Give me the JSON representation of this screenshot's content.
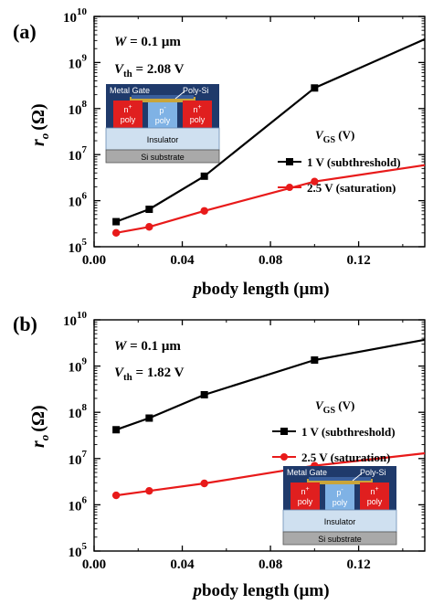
{
  "chart_data": [
    {
      "type": "line",
      "panel_label": "(a)",
      "ylabel_main": "r",
      "ylabel_sub": "o",
      "ylabel_unit": "(Ω)",
      "xlabel_italic": "p",
      "xlabel_rest": "body length (μm)",
      "x_ticks": [
        "0.00",
        "0.04",
        "0.08",
        "0.12"
      ],
      "y_ticks": [
        {
          "base": "10",
          "exp": "5"
        },
        {
          "base": "10",
          "exp": "6"
        },
        {
          "base": "10",
          "exp": "7"
        },
        {
          "base": "10",
          "exp": "8"
        },
        {
          "base": "10",
          "exp": "9"
        },
        {
          "base": "10",
          "exp": "10"
        }
      ],
      "xlim": [
        0,
        0.15
      ],
      "ylim_log10": [
        5,
        10
      ],
      "y_scale": "log",
      "annotations": {
        "w_italic": "W",
        "w_rest": " = 0.1 μm",
        "vth_italic": "V",
        "vth_sub": "th",
        "vth_rest": " = 2.08 V"
      },
      "legend_title": {
        "italic": "V",
        "sub": "GS",
        "rest": " (V)"
      },
      "legend_placement": "right",
      "inset_placement": "left",
      "series": [
        {
          "name": "1 V (subthreshold)",
          "color": "#000000",
          "marker": "square",
          "x": [
            0.01,
            0.025,
            0.05,
            0.1,
            0.15
          ],
          "y": [
            350000.0,
            650000.0,
            3400000.0,
            280000000.0,
            3200000000.0
          ]
        },
        {
          "name": "2.5 V (saturation)",
          "color": "#e81a1a",
          "marker": "circle",
          "x": [
            0.01,
            0.025,
            0.05,
            0.1,
            0.15
          ],
          "y": [
            200000.0,
            270000.0,
            600000.0,
            2600000.0,
            5900000.0
          ]
        }
      ]
    },
    {
      "type": "line",
      "panel_label": "(b)",
      "ylabel_main": "r",
      "ylabel_sub": "o",
      "ylabel_unit": "(Ω)",
      "xlabel_italic": "p",
      "xlabel_rest": "body length (μm)",
      "x_ticks": [
        "0.00",
        "0.04",
        "0.08",
        "0.12"
      ],
      "y_ticks": [
        {
          "base": "10",
          "exp": "5"
        },
        {
          "base": "10",
          "exp": "6"
        },
        {
          "base": "10",
          "exp": "7"
        },
        {
          "base": "10",
          "exp": "8"
        },
        {
          "base": "10",
          "exp": "9"
        },
        {
          "base": "10",
          "exp": "10"
        }
      ],
      "xlim": [
        0,
        0.15
      ],
      "ylim_log10": [
        5,
        10
      ],
      "y_scale": "log",
      "annotations": {
        "w_italic": "W",
        "w_rest": " = 0.1 μm",
        "vth_italic": "V",
        "vth_sub": "th",
        "vth_rest": " = 1.82 V"
      },
      "legend_title": {
        "italic": "V",
        "sub": "GS",
        "rest": " (V)"
      },
      "legend_placement": "right",
      "inset_placement": "bottom-right",
      "series": [
        {
          "name": "1 V (subthreshold)",
          "color": "#000000",
          "marker": "square",
          "x": [
            0.01,
            0.025,
            0.05,
            0.1,
            0.15
          ],
          "y": [
            42000000.0,
            75000000.0,
            240000000.0,
            1350000000.0,
            3700000000.0
          ]
        },
        {
          "name": "2.5 V (saturation)",
          "color": "#e81a1a",
          "marker": "circle",
          "x": [
            0.01,
            0.025,
            0.05,
            0.1,
            0.15
          ],
          "y": [
            1600000.0,
            2000000.0,
            2900000.0,
            7000000.0,
            13000000.0
          ]
        }
      ]
    }
  ],
  "inset": {
    "metal_gate": "Metal Gate",
    "poly_si": "Poly-Si",
    "n_plus": "n",
    "n_plus_sup": "+",
    "p_minus": "p",
    "p_minus_sup": "-",
    "poly": "poly",
    "insulator": "Insulator",
    "si_substrate": "Si substrate",
    "colors": {
      "gate": "#1f3a6b",
      "n_region": "#e01f1f",
      "p_region": "#7fb2e5",
      "gold": "#c9a53a",
      "insulator": "#cfe0f0",
      "substrate": "#a9a9a9"
    }
  }
}
